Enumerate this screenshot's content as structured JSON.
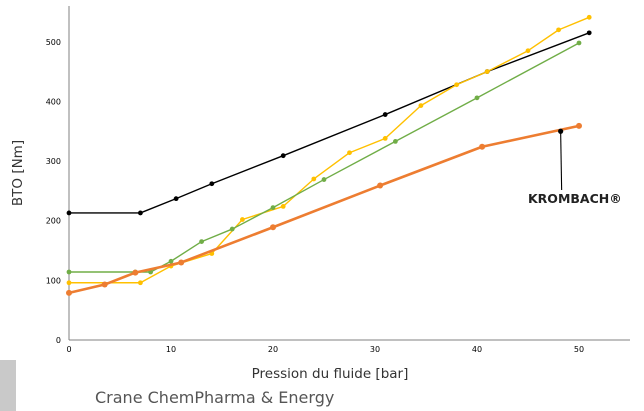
{
  "chart_data": {
    "type": "line",
    "xlabel": "Pression du fluide [bar]",
    "ylabel": "BTO [Nm]",
    "xlim": [
      0,
      55
    ],
    "ylim": [
      0,
      560
    ],
    "x_ticks": [
      "0",
      "10",
      "20",
      "30",
      "40",
      "50"
    ],
    "y_ticks": [
      "0",
      "100",
      "200",
      "300",
      "400",
      "500"
    ],
    "grid": false,
    "legend": "none",
    "series": [
      {
        "color": "#000000",
        "points": [
          [
            0,
            213
          ],
          [
            7,
            213
          ],
          [
            10.5,
            237
          ],
          [
            14,
            262
          ],
          [
            21,
            309
          ],
          [
            31,
            378
          ],
          [
            41,
            450
          ],
          [
            51,
            515
          ]
        ]
      },
      {
        "color": "#FFC000",
        "points": [
          [
            0,
            96
          ],
          [
            7,
            96
          ],
          [
            10,
            124
          ],
          [
            14,
            145
          ],
          [
            17,
            202
          ],
          [
            21,
            224
          ],
          [
            24,
            270
          ],
          [
            27.5,
            314
          ],
          [
            31,
            338
          ],
          [
            34.5,
            393
          ],
          [
            38,
            428
          ],
          [
            41,
            450
          ],
          [
            45,
            485
          ],
          [
            48,
            520
          ],
          [
            51,
            541
          ]
        ]
      },
      {
        "color": "#70AD47",
        "points": [
          [
            0,
            114
          ],
          [
            6.5,
            114
          ],
          [
            8,
            114
          ],
          [
            10,
            132
          ],
          [
            13,
            165
          ],
          [
            16,
            186
          ],
          [
            20,
            222
          ],
          [
            25,
            269
          ],
          [
            32,
            333
          ],
          [
            40,
            406
          ],
          [
            50,
            498
          ]
        ]
      },
      {
        "color": "#ED7D31",
        "points": [
          [
            0,
            79
          ],
          [
            3.5,
            93
          ],
          [
            6.5,
            113
          ],
          [
            11,
            130
          ],
          [
            20,
            189
          ],
          [
            30.5,
            259
          ],
          [
            40.5,
            324
          ],
          [
            50,
            359
          ]
        ]
      }
    ],
    "annotations": [
      {
        "text": "KROMBACH®",
        "point": [
          48.2,
          350
        ]
      }
    ]
  },
  "footer": {
    "text": "Crane ChemPharma & Energy"
  }
}
